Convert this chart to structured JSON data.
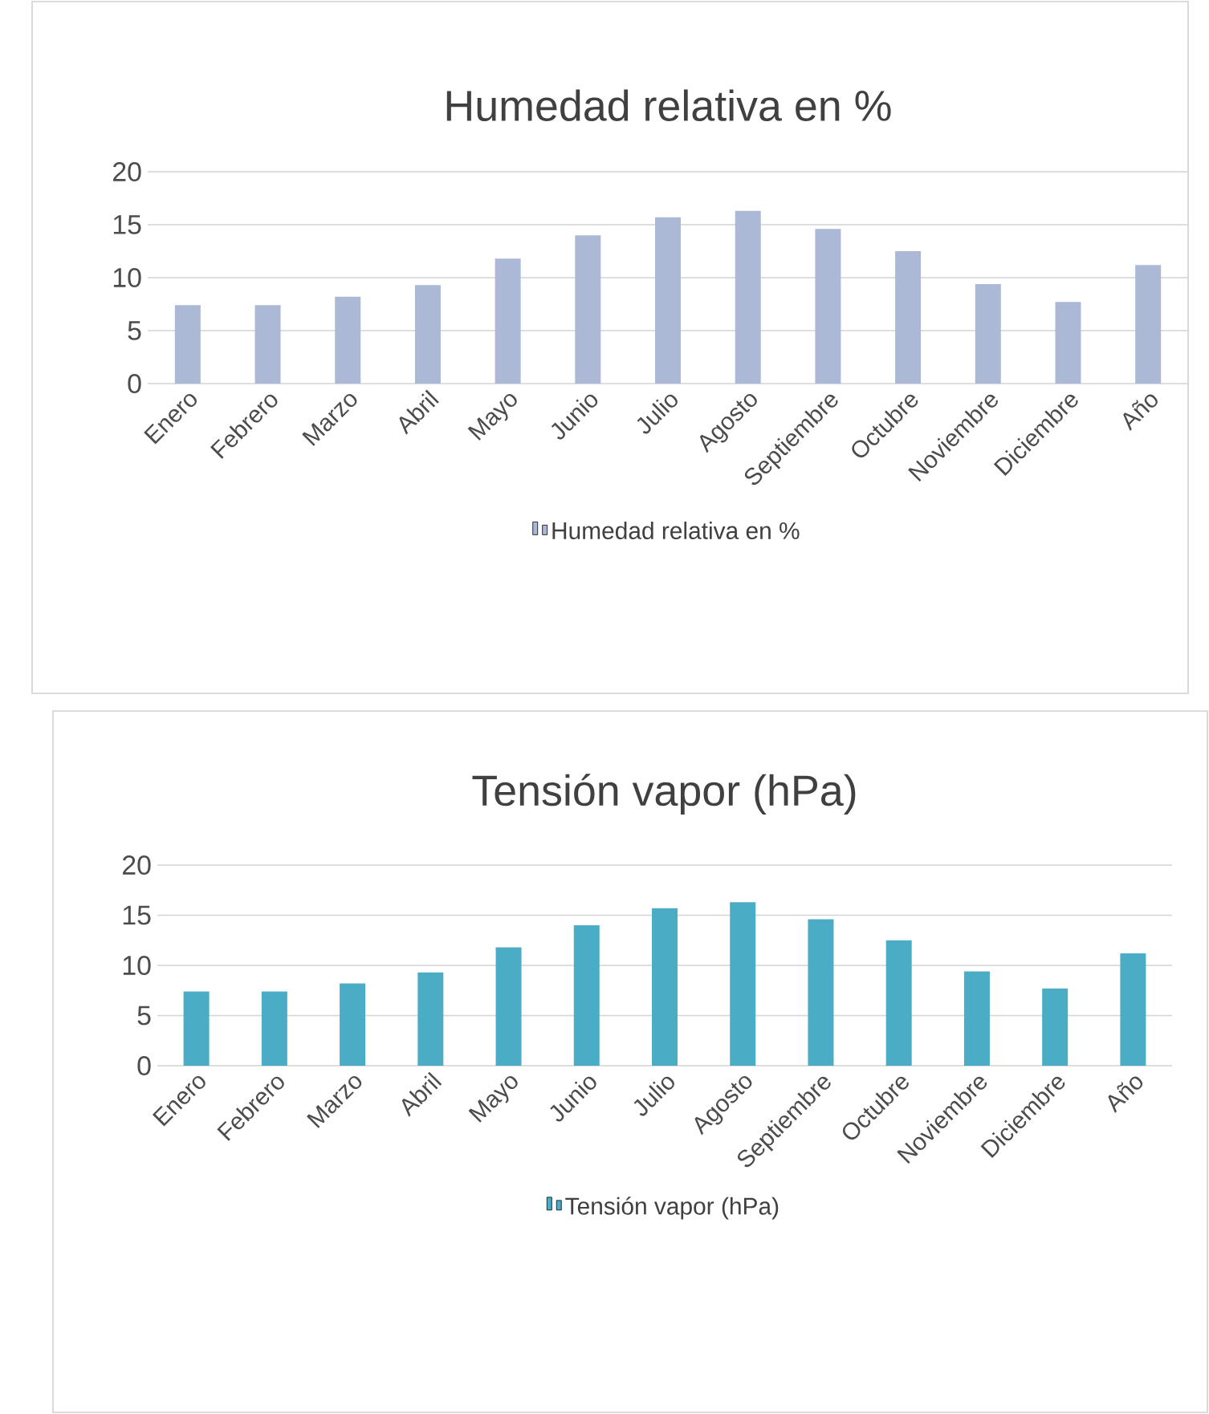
{
  "chart_data": [
    {
      "type": "bar",
      "title": "Humedad relativa en %",
      "categories": [
        "Enero",
        "Febrero",
        "Marzo",
        "Abril",
        "Mayo",
        "Junio",
        "Julio",
        "Agosto",
        "Septiembre",
        "Octubre",
        "Noviembre",
        "Diciembre",
        "Año"
      ],
      "series": [
        {
          "name": "Humedad relativa en %",
          "color": "#abb9d7",
          "values": [
            7.4,
            7.4,
            8.2,
            9.3,
            11.8,
            14.0,
            15.7,
            16.3,
            14.6,
            12.5,
            9.4,
            7.7,
            11.2
          ]
        }
      ],
      "ylim": [
        0,
        20
      ],
      "yticks": [
        0,
        5,
        10,
        15,
        20
      ],
      "grid": "y",
      "legend": "bottom"
    },
    {
      "type": "bar",
      "title": "Tensión vapor (hPa)",
      "categories": [
        "Enero",
        "Febrero",
        "Marzo",
        "Abril",
        "Mayo",
        "Junio",
        "Julio",
        "Agosto",
        "Septiembre",
        "Octubre",
        "Noviembre",
        "Diciembre",
        "Año"
      ],
      "series": [
        {
          "name": "Tensión vapor (hPa)",
          "color": "#4bacc6",
          "values": [
            7.4,
            7.4,
            8.2,
            9.3,
            11.8,
            14.0,
            15.7,
            16.3,
            14.6,
            12.5,
            9.4,
            7.7,
            11.2
          ]
        }
      ],
      "ylim": [
        0,
        20
      ],
      "yticks": [
        0,
        5,
        10,
        15,
        20
      ],
      "grid": "y",
      "legend": "bottom"
    }
  ]
}
